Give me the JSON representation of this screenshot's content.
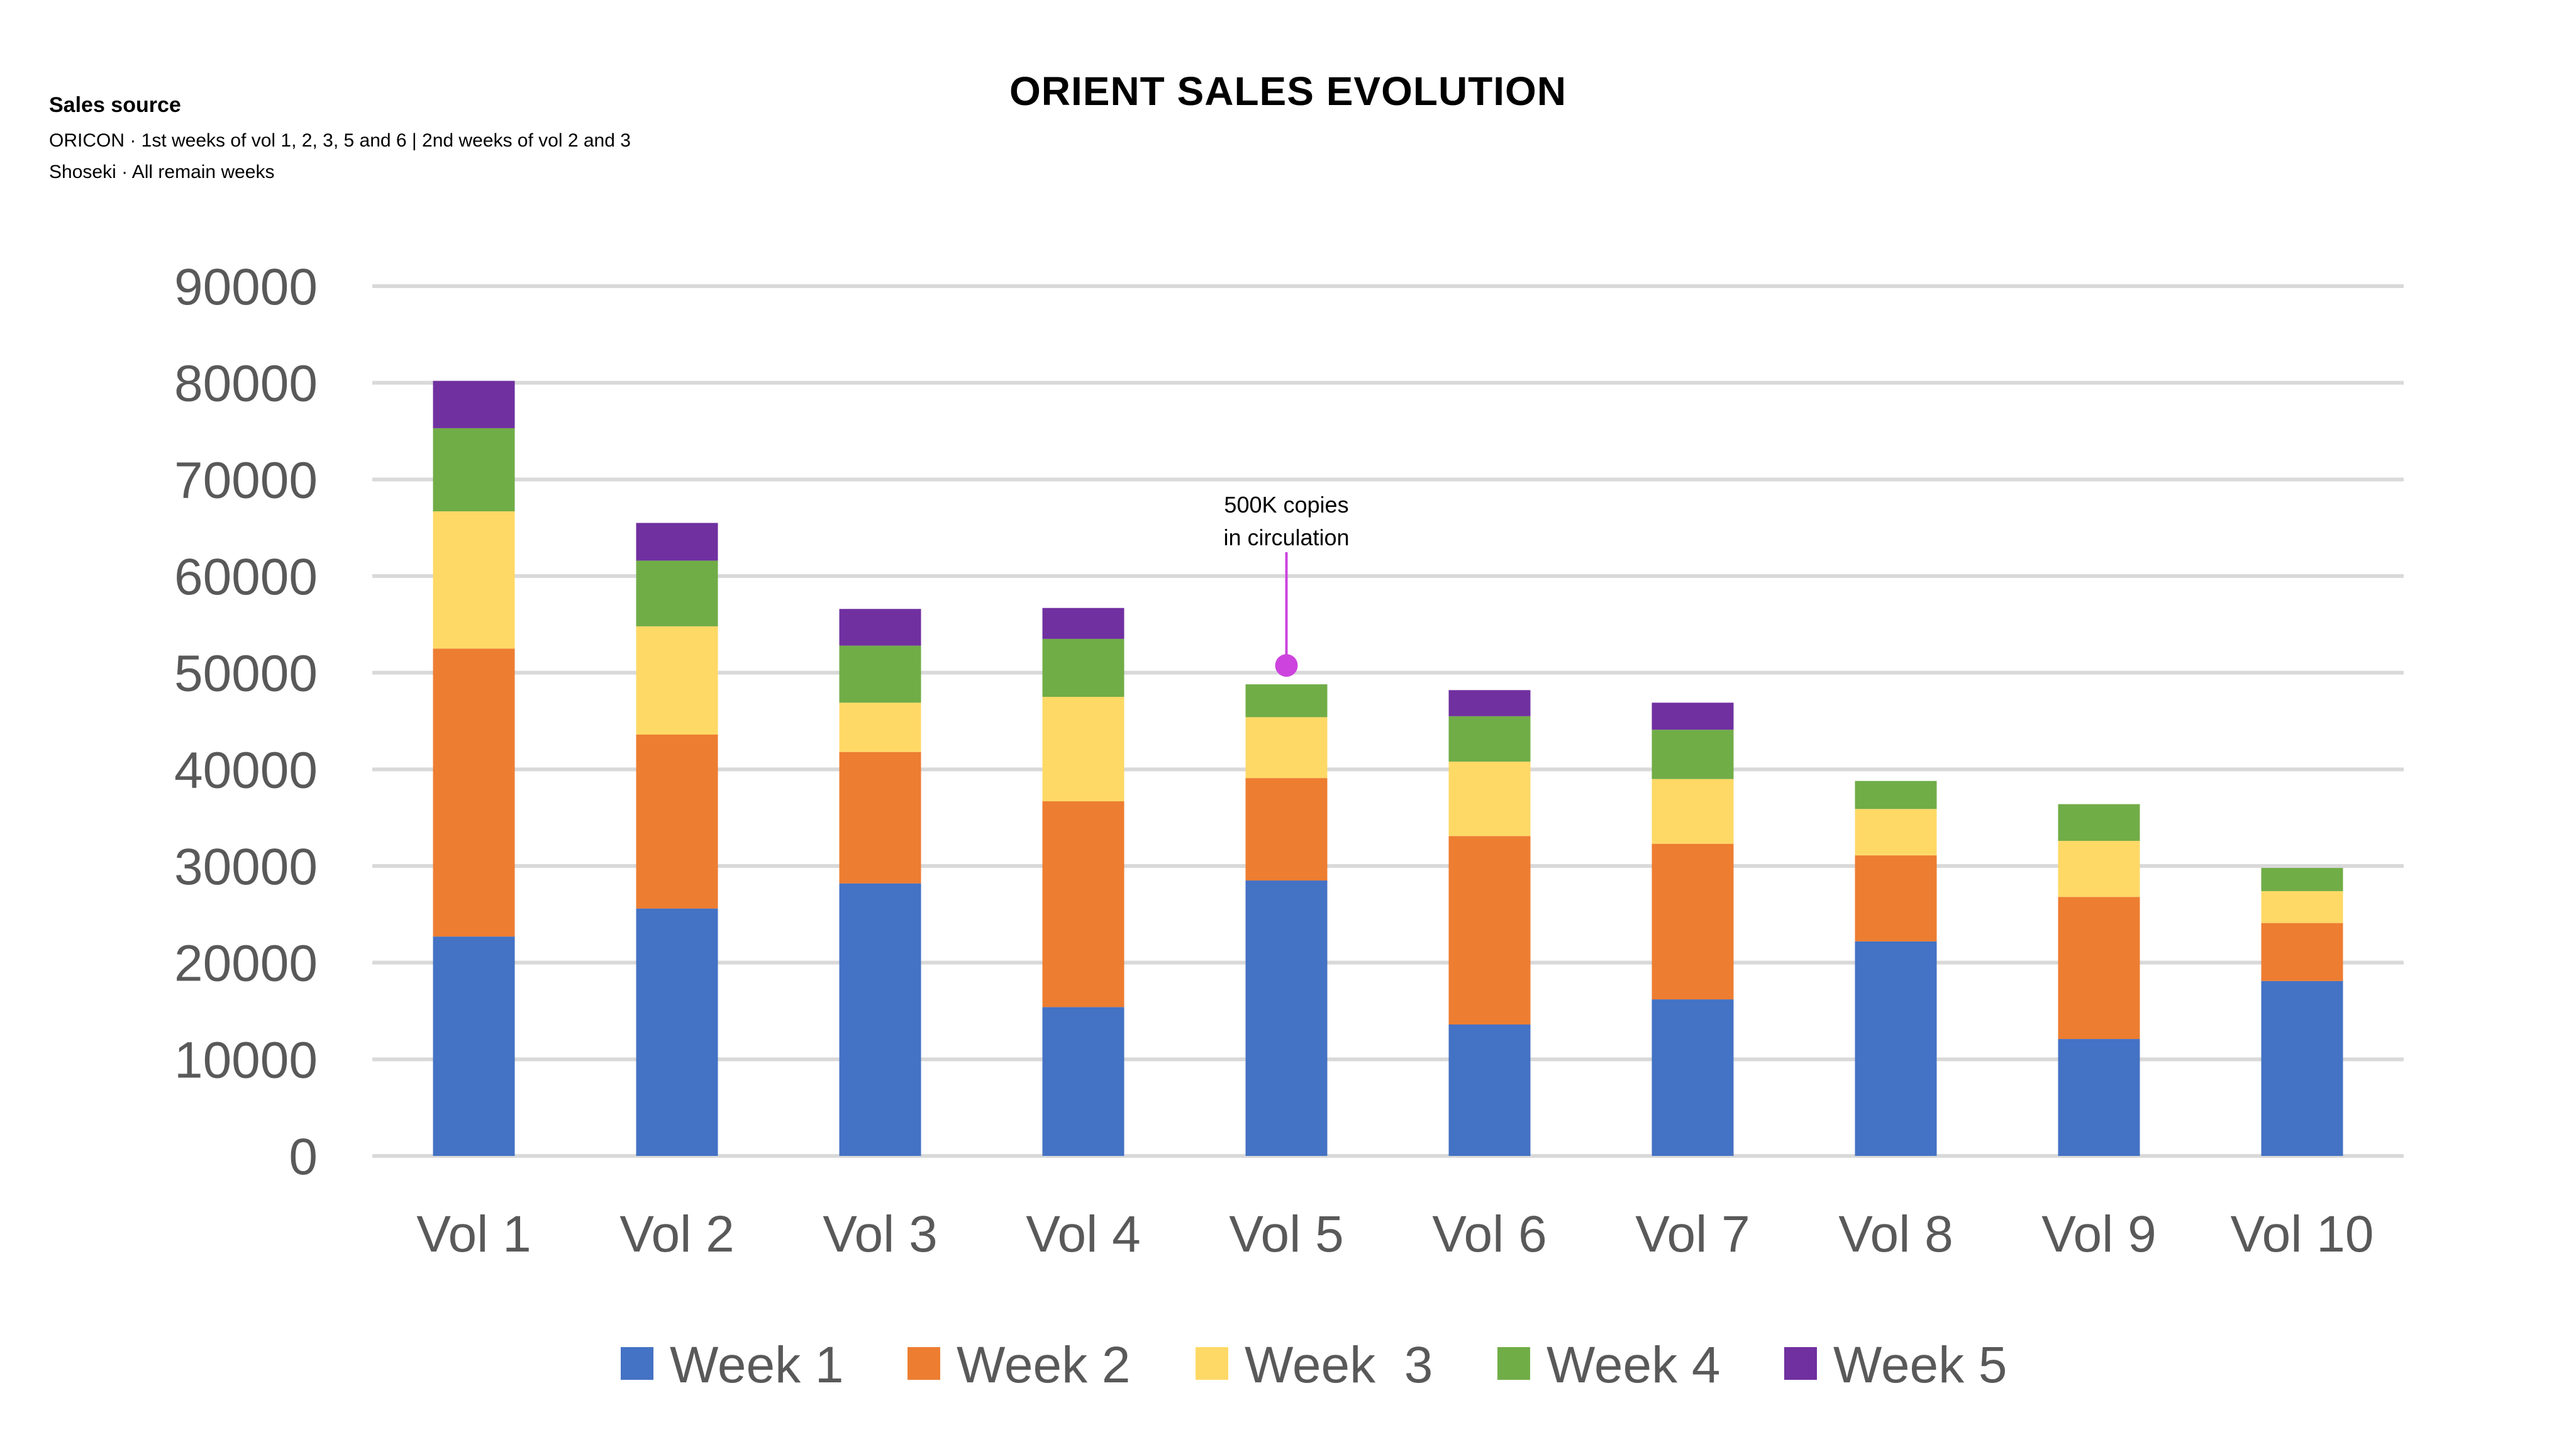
{
  "source": {
    "title": "Sales source",
    "lines": [
      "ORICON · 1st weeks of vol 1, 2, 3, 5 and 6 | 2nd weeks of vol 2 and 3",
      "Shoseki · All remain weeks"
    ]
  },
  "chart_data": {
    "type": "bar",
    "stacked": true,
    "title": "ORIENT SALES EVOLUTION",
    "xlabel": "",
    "ylabel": "",
    "ylim": [
      0,
      90000
    ],
    "yticks": [
      0,
      10000,
      20000,
      30000,
      40000,
      50000,
      60000,
      70000,
      80000,
      90000
    ],
    "grid": true,
    "legend_position": "bottom",
    "categories": [
      "Vol 1",
      "Vol 2",
      "Vol 3",
      "Vol 4",
      "Vol 5",
      "Vol 6",
      "Vol 7",
      "Vol 8",
      "Vol 9",
      "Vol 10"
    ],
    "series": [
      {
        "name": "Week 1",
        "color": "#4472C4",
        "values": [
          22700,
          25600,
          28200,
          15400,
          28500,
          13600,
          16200,
          22200,
          12100,
          18100
        ]
      },
      {
        "name": "Week 2",
        "color": "#ED7D31",
        "values": [
          29800,
          18000,
          13600,
          21300,
          10600,
          19500,
          16100,
          8900,
          14700,
          6000
        ]
      },
      {
        "name": "Week  3",
        "color": "#FFD966",
        "values": [
          14200,
          11200,
          5100,
          10800,
          6300,
          7700,
          6700,
          4800,
          5800,
          3300
        ]
      },
      {
        "name": "Week 4",
        "color": "#70AD47",
        "values": [
          8600,
          6800,
          5900,
          6000,
          3400,
          4700,
          5100,
          2900,
          3800,
          2400
        ]
      },
      {
        "name": "Week 5",
        "color": "#7030A0",
        "values": [
          4900,
          3900,
          3800,
          3200,
          0,
          2700,
          2800,
          0,
          0,
          0
        ]
      }
    ],
    "annotations": [
      {
        "category": "Vol 5",
        "text_lines": [
          "500K copies",
          "in circulation"
        ],
        "marker_color": "#CC44DD"
      }
    ]
  }
}
